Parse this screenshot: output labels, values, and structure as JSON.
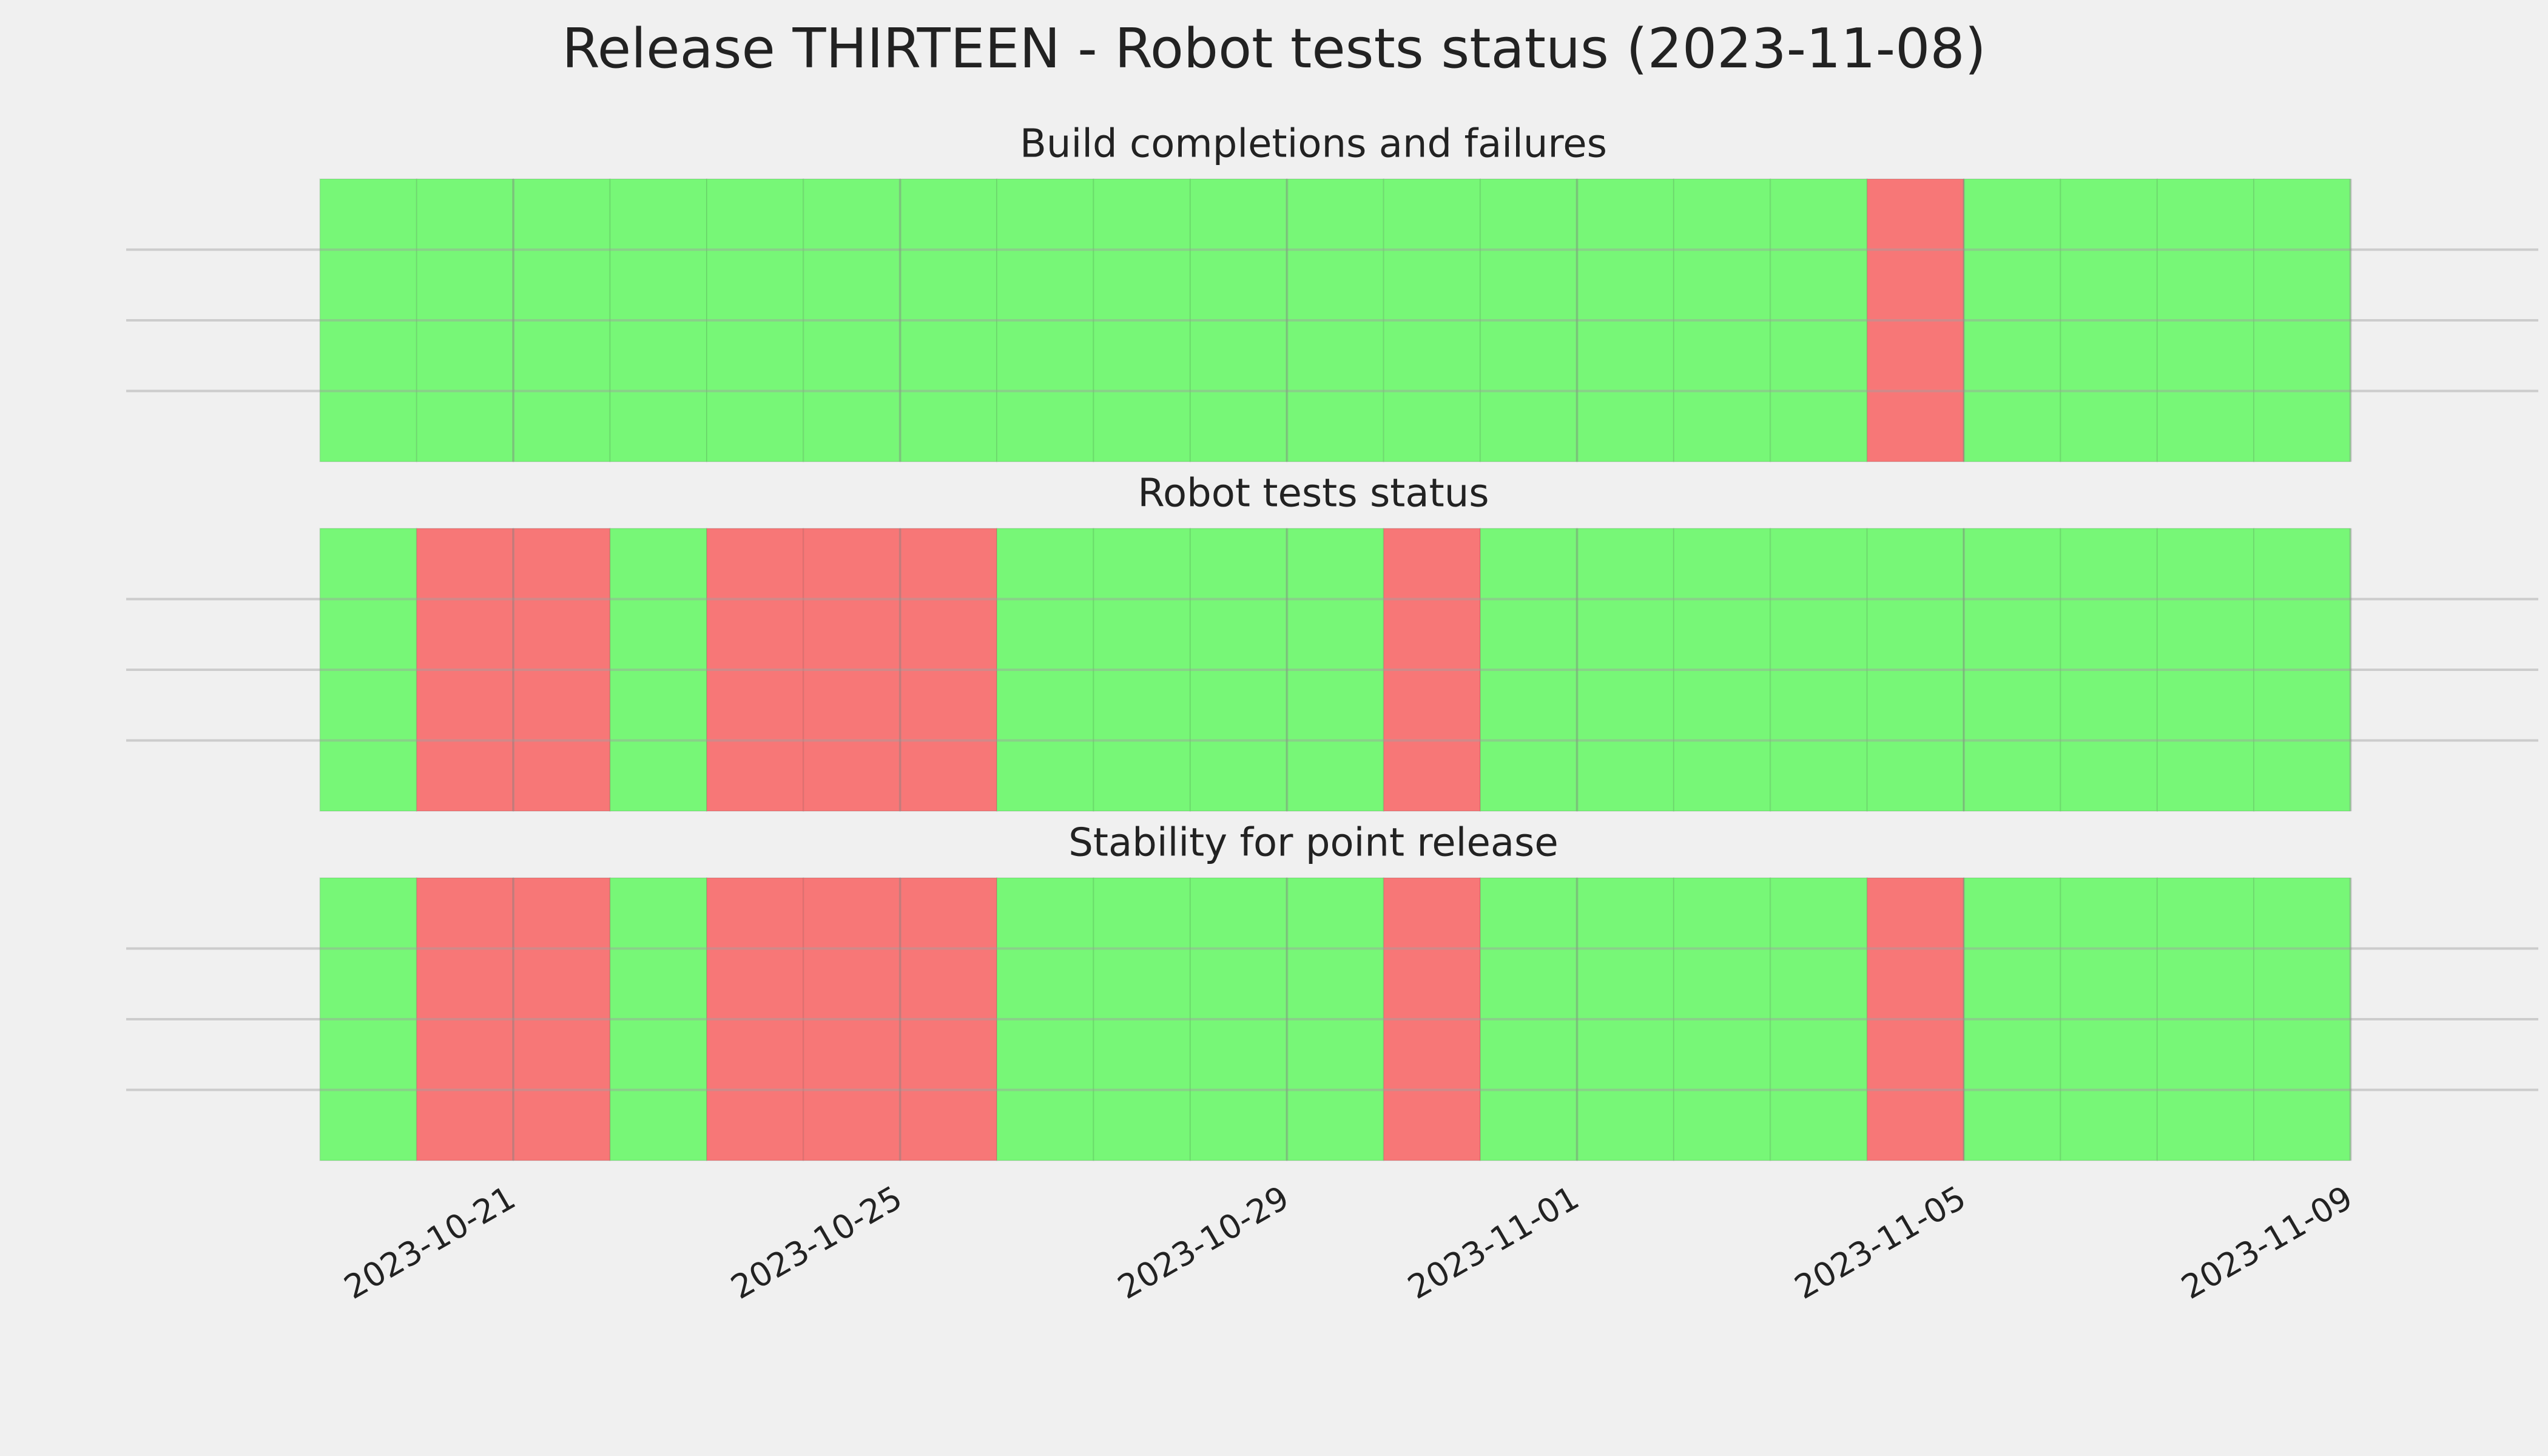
{
  "title": "Release THIRTEEN - Robot tests status (2023-11-08)",
  "chart_data": [
    {
      "type": "timeline",
      "title": "Build completions and failures",
      "x": [
        "2023-10-19",
        "2023-10-20",
        "2023-10-21",
        "2023-10-22",
        "2023-10-23",
        "2023-10-24",
        "2023-10-25",
        "2023-10-26",
        "2023-10-27",
        "2023-10-28",
        "2023-10-29",
        "2023-10-30",
        "2023-10-31",
        "2023-11-01",
        "2023-11-02",
        "2023-11-03",
        "2023-11-04",
        "2023-11-05",
        "2023-11-06",
        "2023-11-07",
        "2023-11-08"
      ],
      "values": [
        1,
        1,
        1,
        1,
        1,
        1,
        1,
        1,
        1,
        1,
        1,
        1,
        1,
        1,
        1,
        1,
        0,
        1,
        1,
        1,
        1
      ],
      "colors": [
        "#f77777",
        "#77f777"
      ],
      "xlim": [
        "2023-10-18",
        "2023-11-10"
      ],
      "xticks": [
        "2023-10-21",
        "2023-10-25",
        "2023-10-29",
        "2023-11-01",
        "2023-11-05",
        "2023-11-09"
      ],
      "grid": true
    },
    {
      "type": "timeline",
      "title": "Robot tests status",
      "x": [
        "2023-10-19",
        "2023-10-20",
        "2023-10-21",
        "2023-10-22",
        "2023-10-23",
        "2023-10-24",
        "2023-10-25",
        "2023-10-26",
        "2023-10-27",
        "2023-10-28",
        "2023-10-29",
        "2023-10-30",
        "2023-10-31",
        "2023-11-01",
        "2023-11-02",
        "2023-11-03",
        "2023-11-04",
        "2023-11-05",
        "2023-11-06",
        "2023-11-07",
        "2023-11-08"
      ],
      "values": [
        1,
        0,
        0,
        1,
        0,
        0,
        0,
        1,
        1,
        1,
        1,
        0,
        1,
        1,
        1,
        1,
        1,
        1,
        1,
        1,
        1
      ],
      "colors": [
        "#f77777",
        "#77f777"
      ],
      "xlim": [
        "2023-10-18",
        "2023-11-10"
      ],
      "xticks": [
        "2023-10-21",
        "2023-10-25",
        "2023-10-29",
        "2023-11-01",
        "2023-11-05",
        "2023-11-09"
      ],
      "grid": true
    },
    {
      "type": "timeline",
      "title": "Stability for point release",
      "x": [
        "2023-10-19",
        "2023-10-20",
        "2023-10-21",
        "2023-10-22",
        "2023-10-23",
        "2023-10-24",
        "2023-10-25",
        "2023-10-26",
        "2023-10-27",
        "2023-10-28",
        "2023-10-29",
        "2023-10-30",
        "2023-10-31",
        "2023-11-01",
        "2023-11-02",
        "2023-11-03",
        "2023-11-04",
        "2023-11-05",
        "2023-11-06",
        "2023-11-07",
        "2023-11-08"
      ],
      "values": [
        1,
        0,
        0,
        1,
        0,
        0,
        0,
        1,
        1,
        1,
        1,
        0,
        1,
        1,
        1,
        1,
        0,
        1,
        1,
        1,
        1
      ],
      "colors": [
        "#f77777",
        "#77f777"
      ],
      "xlim": [
        "2023-10-18",
        "2023-11-10"
      ],
      "xticks": [
        "2023-10-21",
        "2023-10-25",
        "2023-10-29",
        "2023-11-01",
        "2023-11-05",
        "2023-11-09"
      ],
      "grid": true
    }
  ]
}
